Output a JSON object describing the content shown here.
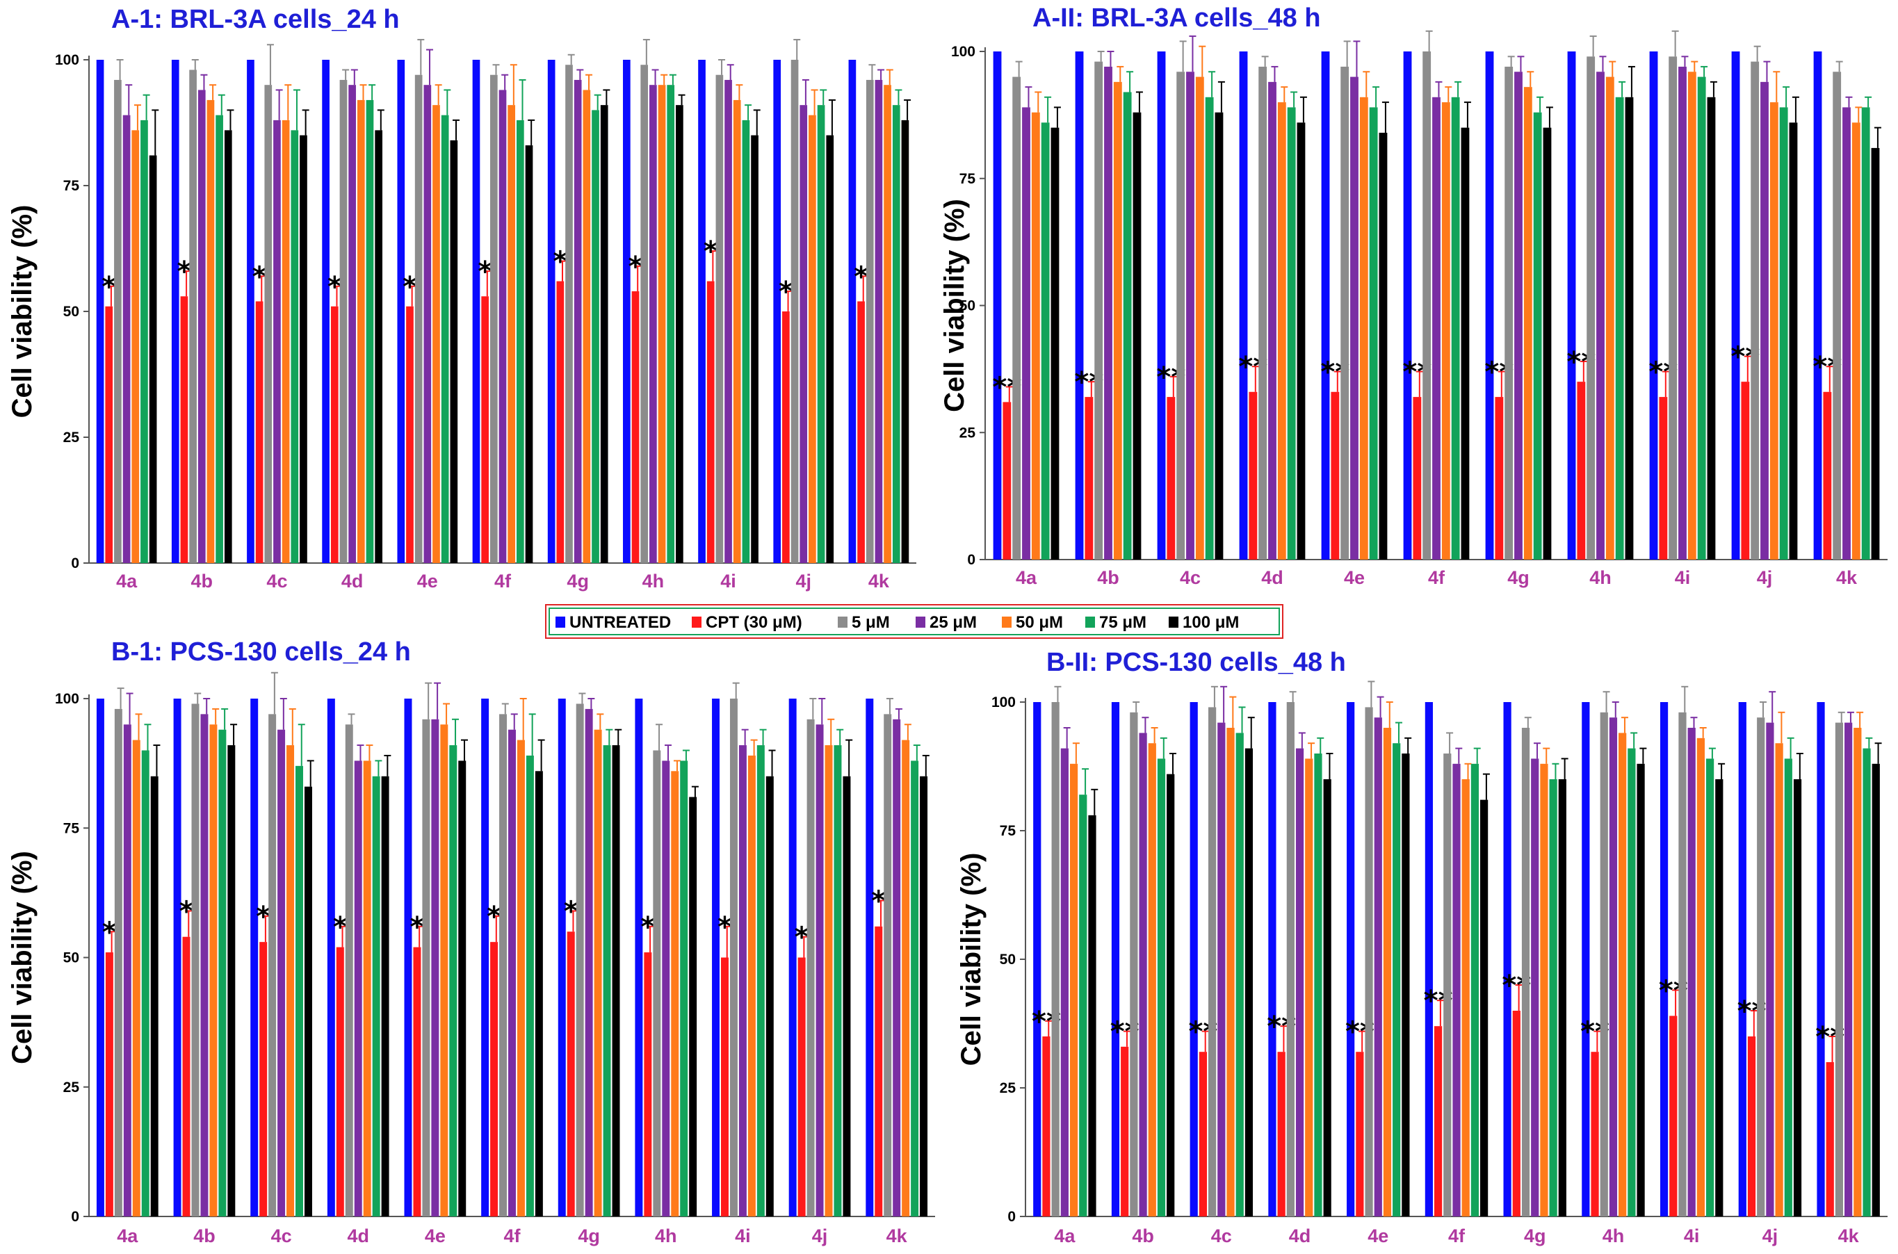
{
  "legend": {
    "entries": [
      {
        "label": "UNTREATED",
        "color": "#0a0aff"
      },
      {
        "label": "CPT (30 μM)",
        "color": "#ff1a1a"
      },
      {
        "label": "5 μM",
        "color": "#8c8c8c"
      },
      {
        "label": "25 μM",
        "color": "#7a2ea3"
      },
      {
        "label": "50 μM",
        "color": "#ff7a1a"
      },
      {
        "label": "75 μM",
        "color": "#12a35a"
      },
      {
        "label": "100 μM",
        "color": "#000000"
      }
    ]
  },
  "chart_data": [
    {
      "id": "A1",
      "type": "bar",
      "title": "A-1: BRL-3A cells_24 h",
      "ylabel": "Cell viability (%)",
      "xlabel": "",
      "ylim": [
        0,
        100
      ],
      "yticks": [
        "0",
        "25",
        "50",
        "75",
        "100"
      ],
      "categories": [
        "4a",
        "4b",
        "4c",
        "4d",
        "4e",
        "4f",
        "4g",
        "4h",
        "4i",
        "4j",
        "4k"
      ],
      "significance": [
        "*",
        "*",
        "*",
        "*",
        "*",
        "*",
        "*",
        "*",
        "*",
        "*",
        "*"
      ],
      "series": [
        {
          "name": "UNTREATED",
          "values": [
            100,
            100,
            100,
            100,
            100,
            100,
            100,
            100,
            100,
            100,
            100
          ],
          "errors": [
            0,
            0,
            0,
            0,
            0,
            0,
            0,
            0,
            0,
            0,
            0
          ]
        },
        {
          "name": "CPT (30 μM)",
          "values": [
            51,
            53,
            52,
            51,
            51,
            53,
            56,
            54,
            56,
            50,
            52
          ],
          "errors": [
            4,
            5,
            5,
            4,
            4,
            5,
            4,
            5,
            6,
            4,
            5
          ]
        },
        {
          "name": "5 μM",
          "values": [
            96,
            98,
            95,
            96,
            97,
            97,
            99,
            99,
            97,
            100,
            96
          ],
          "errors": [
            4,
            2,
            8,
            2,
            7,
            2,
            2,
            5,
            3,
            4,
            3
          ]
        },
        {
          "name": "25 μM",
          "values": [
            89,
            94,
            88,
            95,
            95,
            94,
            96,
            95,
            96,
            91,
            96
          ],
          "errors": [
            6,
            3,
            6,
            3,
            7,
            3,
            2,
            3,
            3,
            5,
            2
          ]
        },
        {
          "name": "50 μM",
          "values": [
            86,
            92,
            88,
            92,
            91,
            91,
            94,
            95,
            92,
            89,
            95
          ],
          "errors": [
            5,
            3,
            7,
            3,
            4,
            8,
            3,
            2,
            3,
            5,
            3
          ]
        },
        {
          "name": "75 μM",
          "values": [
            88,
            89,
            86,
            92,
            89,
            88,
            90,
            95,
            88,
            91,
            91
          ],
          "errors": [
            5,
            4,
            8,
            3,
            5,
            8,
            3,
            2,
            3,
            3,
            3
          ]
        },
        {
          "name": "100 μM",
          "values": [
            81,
            86,
            85,
            86,
            84,
            83,
            91,
            91,
            85,
            85,
            88
          ],
          "errors": [
            9,
            4,
            5,
            4,
            4,
            5,
            3,
            2,
            5,
            7,
            4
          ]
        }
      ]
    },
    {
      "id": "A2",
      "type": "bar",
      "title": "A-II: BRL-3A cells_48 h",
      "ylabel": "Cell viability (%)",
      "xlabel": "",
      "ylim": [
        0,
        100
      ],
      "yticks": [
        "0",
        "25",
        "50",
        "75",
        "100"
      ],
      "categories": [
        "4a",
        "4b",
        "4c",
        "4d",
        "4e",
        "4f",
        "4g",
        "4h",
        "4i",
        "4j",
        "4k"
      ],
      "significance": [
        "**",
        "**",
        "**",
        "**",
        "**",
        "**",
        "**",
        "**",
        "**",
        "**",
        "**"
      ],
      "series": [
        {
          "name": "UNTREATED",
          "values": [
            100,
            100,
            100,
            100,
            100,
            100,
            100,
            100,
            100,
            100,
            100
          ],
          "errors": [
            0,
            0,
            0,
            0,
            0,
            0,
            0,
            0,
            0,
            0,
            0
          ]
        },
        {
          "name": "CPT (30 μM)",
          "values": [
            31,
            32,
            32,
            33,
            33,
            32,
            32,
            35,
            32,
            35,
            33
          ],
          "errors": [
            3,
            3,
            4,
            5,
            4,
            5,
            5,
            4,
            5,
            5,
            5
          ]
        },
        {
          "name": "5 μM",
          "values": [
            95,
            98,
            96,
            97,
            97,
            100,
            97,
            99,
            99,
            98,
            96
          ],
          "errors": [
            3,
            2,
            6,
            2,
            5,
            4,
            2,
            4,
            5,
            3,
            2
          ]
        },
        {
          "name": "25 μM",
          "values": [
            89,
            97,
            96,
            94,
            95,
            91,
            96,
            96,
            97,
            94,
            89
          ],
          "errors": [
            4,
            3,
            7,
            3,
            7,
            3,
            3,
            3,
            2,
            4,
            2
          ]
        },
        {
          "name": "50 μM",
          "values": [
            88,
            94,
            95,
            90,
            91,
            90,
            93,
            95,
            96,
            90,
            86
          ],
          "errors": [
            4,
            3,
            6,
            3,
            5,
            3,
            3,
            3,
            2,
            6,
            3
          ]
        },
        {
          "name": "75 μM",
          "values": [
            86,
            92,
            91,
            89,
            89,
            91,
            88,
            91,
            95,
            89,
            89
          ],
          "errors": [
            5,
            4,
            5,
            3,
            4,
            3,
            3,
            3,
            2,
            4,
            2
          ]
        },
        {
          "name": "100 μM",
          "values": [
            85,
            88,
            88,
            86,
            84,
            85,
            85,
            91,
            91,
            86,
            81
          ],
          "errors": [
            4,
            4,
            6,
            5,
            6,
            5,
            4,
            6,
            3,
            5,
            4
          ]
        }
      ]
    },
    {
      "id": "B1",
      "type": "bar",
      "title": "B-1: PCS-130 cells_24 h",
      "ylabel": "Cell viability (%)",
      "xlabel": "",
      "ylim": [
        0,
        100
      ],
      "yticks": [
        "0",
        "25",
        "50",
        "75",
        "100"
      ],
      "categories": [
        "4a",
        "4b",
        "4c",
        "4d",
        "4e",
        "4f",
        "4g",
        "4h",
        "4i",
        "4j",
        "4k"
      ],
      "significance": [
        "*",
        "*",
        "*",
        "*",
        "*",
        "*",
        "*",
        "*",
        "*",
        "*",
        "*"
      ],
      "series": [
        {
          "name": "UNTREATED",
          "values": [
            100,
            100,
            100,
            100,
            100,
            100,
            100,
            100,
            100,
            100,
            100
          ],
          "errors": [
            0,
            0,
            0,
            0,
            0,
            0,
            0,
            0,
            0,
            0,
            0
          ]
        },
        {
          "name": "CPT (30 μM)",
          "values": [
            51,
            54,
            53,
            52,
            52,
            53,
            55,
            51,
            50,
            50,
            56
          ],
          "errors": [
            4,
            5,
            5,
            4,
            4,
            5,
            4,
            5,
            6,
            4,
            5
          ]
        },
        {
          "name": "5 μM",
          "values": [
            98,
            99,
            97,
            95,
            96,
            97,
            99,
            90,
            100,
            96,
            97
          ],
          "errors": [
            4,
            2,
            8,
            2,
            7,
            2,
            2,
            5,
            3,
            4,
            3
          ]
        },
        {
          "name": "25 μM",
          "values": [
            95,
            97,
            94,
            88,
            96,
            94,
            98,
            88,
            91,
            95,
            96
          ],
          "errors": [
            6,
            3,
            6,
            3,
            7,
            3,
            2,
            3,
            3,
            5,
            2
          ]
        },
        {
          "name": "50 μM",
          "values": [
            92,
            95,
            91,
            88,
            95,
            92,
            94,
            86,
            89,
            91,
            92
          ],
          "errors": [
            5,
            3,
            7,
            3,
            4,
            8,
            3,
            2,
            3,
            5,
            3
          ]
        },
        {
          "name": "75 μM",
          "values": [
            90,
            94,
            87,
            85,
            91,
            89,
            91,
            88,
            91,
            91,
            88
          ],
          "errors": [
            5,
            4,
            8,
            3,
            5,
            8,
            3,
            2,
            3,
            3,
            3
          ]
        },
        {
          "name": "100 μM",
          "values": [
            85,
            91,
            83,
            85,
            88,
            86,
            91,
            81,
            85,
            85,
            85
          ],
          "errors": [
            6,
            4,
            5,
            4,
            4,
            6,
            3,
            2,
            5,
            7,
            4
          ]
        }
      ]
    },
    {
      "id": "B2",
      "type": "bar",
      "title": "B-II: PCS-130 cells_48 h",
      "ylabel": "Cell viability (%)",
      "xlabel": "",
      "ylim": [
        0,
        100
      ],
      "yticks": [
        "0",
        "25",
        "50",
        "75",
        "100"
      ],
      "categories": [
        "4a",
        "4b",
        "4c",
        "4d",
        "4e",
        "4f",
        "4g",
        "4h",
        "4i",
        "4j",
        "4k"
      ],
      "significance": [
        "**",
        "**",
        "**",
        "**",
        "**",
        "**",
        "**",
        "**",
        "**",
        "**",
        "**"
      ],
      "series": [
        {
          "name": "UNTREATED",
          "values": [
            100,
            100,
            100,
            100,
            100,
            100,
            100,
            100,
            100,
            100,
            100
          ],
          "errors": [
            0,
            0,
            0,
            0,
            0,
            0,
            0,
            0,
            0,
            0,
            0
          ]
        },
        {
          "name": "CPT (30 μM)",
          "values": [
            35,
            33,
            32,
            32,
            32,
            37,
            40,
            32,
            39,
            35,
            30
          ],
          "errors": [
            3,
            3,
            4,
            5,
            4,
            5,
            5,
            4,
            5,
            5,
            5
          ]
        },
        {
          "name": "5 μM",
          "values": [
            100,
            98,
            99,
            100,
            99,
            90,
            95,
            98,
            98,
            97,
            96
          ],
          "errors": [
            3,
            2,
            4,
            2,
            5,
            4,
            2,
            4,
            5,
            3,
            2
          ]
        },
        {
          "name": "25 μM",
          "values": [
            91,
            94,
            96,
            91,
            97,
            88,
            89,
            97,
            95,
            96,
            96
          ],
          "errors": [
            4,
            3,
            7,
            3,
            4,
            3,
            3,
            3,
            2,
            6,
            2
          ]
        },
        {
          "name": "50 μM",
          "values": [
            88,
            92,
            95,
            89,
            95,
            85,
            88,
            94,
            93,
            92,
            95
          ],
          "errors": [
            4,
            3,
            6,
            3,
            5,
            3,
            3,
            3,
            2,
            6,
            3
          ]
        },
        {
          "name": "75 μM",
          "values": [
            82,
            89,
            94,
            90,
            92,
            88,
            85,
            91,
            89,
            89,
            91
          ],
          "errors": [
            5,
            4,
            5,
            3,
            4,
            3,
            3,
            3,
            2,
            4,
            2
          ]
        },
        {
          "name": "100 μM",
          "values": [
            78,
            86,
            91,
            85,
            90,
            81,
            85,
            88,
            85,
            85,
            88
          ],
          "errors": [
            5,
            4,
            6,
            5,
            3,
            5,
            4,
            3,
            3,
            5,
            4
          ]
        }
      ]
    }
  ]
}
